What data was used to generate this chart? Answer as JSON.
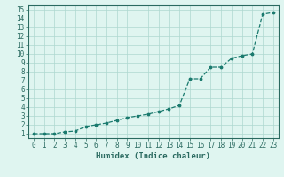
{
  "x": [
    0,
    1,
    2,
    3,
    4,
    5,
    6,
    7,
    8,
    9,
    10,
    11,
    12,
    13,
    14,
    15,
    16,
    17,
    18,
    19,
    20,
    21,
    22,
    23
  ],
  "y": [
    1,
    1,
    1,
    1.2,
    1.3,
    1.8,
    2.0,
    2.2,
    2.5,
    2.8,
    3.0,
    3.2,
    3.5,
    3.8,
    4.2,
    7.2,
    7.2,
    8.5,
    8.5,
    9.5,
    9.8,
    10.0,
    14.5,
    14.7
  ],
  "xlabel": "Humidex (Indice chaleur)",
  "ylabel": "",
  "xlim": [
    -0.5,
    23.5
  ],
  "ylim": [
    0.5,
    15.5
  ],
  "xticks": [
    0,
    1,
    2,
    3,
    4,
    5,
    6,
    7,
    8,
    9,
    10,
    11,
    12,
    13,
    14,
    15,
    16,
    17,
    18,
    19,
    20,
    21,
    22,
    23
  ],
  "yticks": [
    1,
    2,
    3,
    4,
    5,
    6,
    7,
    8,
    9,
    10,
    11,
    12,
    13,
    14,
    15
  ],
  "line_color": "#1a7a6e",
  "marker_color": "#1a7a6e",
  "bg_color": "#dff5f0",
  "grid_color": "#aed8d0",
  "axes_color": "#2a6a60",
  "label_fontsize": 6.5,
  "tick_fontsize": 5.5
}
